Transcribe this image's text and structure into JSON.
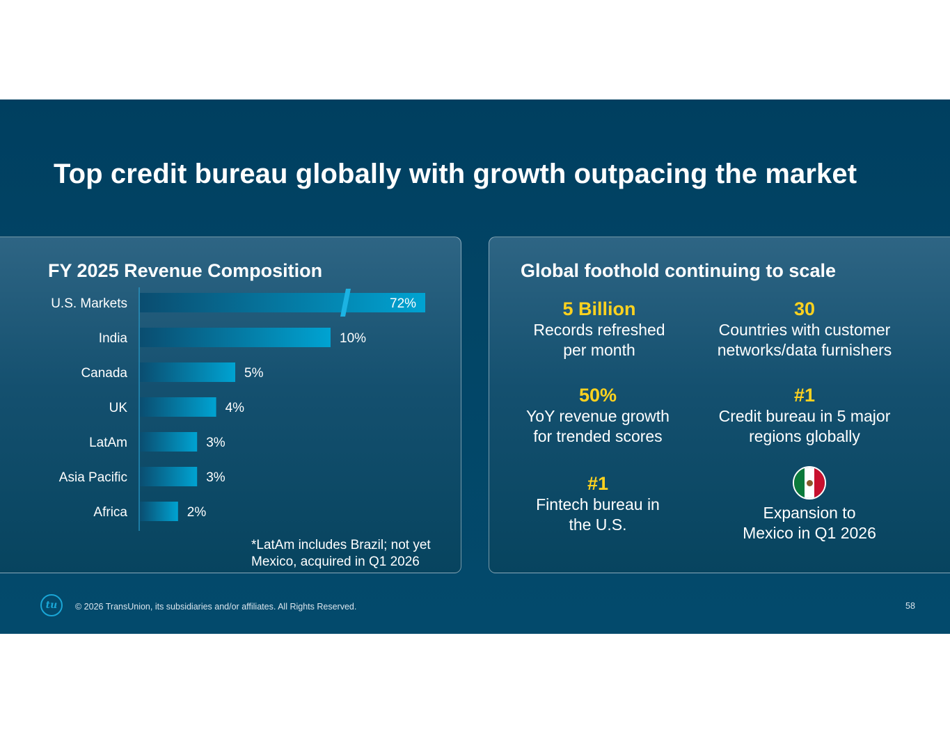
{
  "slide": {
    "title": "Top credit bureau globally with growth outpacing the market",
    "footer": {
      "logo_text": "tu",
      "copyright": "© 2026 TransUnion, its subsidiaries and/or affiliates. All Rights Reserved.",
      "page_number": "58"
    }
  },
  "left_panel": {
    "title": "FY 2025 Revenue Composition",
    "footnote_lines": [
      "*LatAm includes Brazil; not yet",
      "Mexico, acquired in Q1 2026"
    ]
  },
  "chart_data": {
    "type": "bar",
    "orientation": "horizontal",
    "title": "FY 2025 Revenue Composition",
    "categories": [
      "U.S. Markets",
      "India",
      "Canada",
      "UK",
      "LatAm",
      "Asia Pacific",
      "Africa"
    ],
    "values": [
      72,
      10,
      5,
      4,
      3,
      3,
      2
    ],
    "data_labels": [
      "72%",
      "10%",
      "5%",
      "4%",
      "3%",
      "3%",
      "2%"
    ],
    "axis_break_on": "U.S. Markets",
    "bar_colors": [
      "#0a4d70",
      "#00a3d2"
    ]
  },
  "right_panel": {
    "title": "Global foothold continuing to scale",
    "stats": [
      {
        "value": "5 Billion",
        "lines": [
          "Records refreshed",
          "per month"
        ]
      },
      {
        "value": "30",
        "lines": [
          "Countries with customer",
          "networks/data furnishers"
        ]
      },
      {
        "value": "50%",
        "lines": [
          "YoY revenue growth",
          "for trended scores"
        ]
      },
      {
        "value": "#1",
        "lines": [
          "Credit bureau in 5 major",
          "regions globally"
        ]
      },
      {
        "value": "#1",
        "lines": [
          "Fintech bureau in",
          "the U.S."
        ]
      }
    ],
    "expansion": {
      "icon": "mexico-flag-icon",
      "lines": [
        "Expansion to",
        "Mexico in Q1 2026"
      ]
    }
  },
  "colors": {
    "accent": "#ffd21f",
    "background": "#023f5f",
    "bar": "#00a3d2"
  }
}
